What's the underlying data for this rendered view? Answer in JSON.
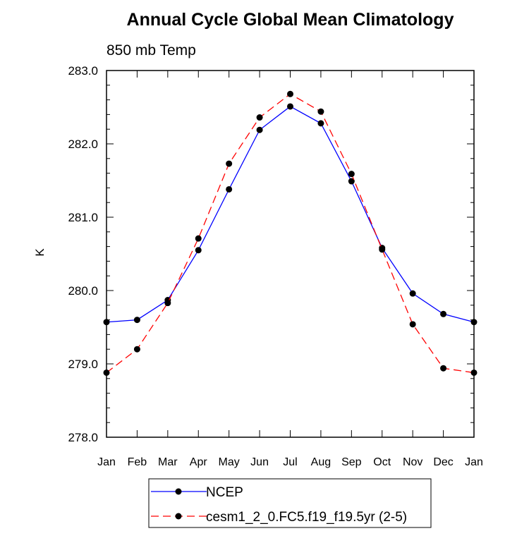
{
  "chart_data": {
    "type": "line",
    "title": "Annual Cycle Global Mean Climatology",
    "subtitle": "850 mb Temp",
    "xlabel": "",
    "ylabel": "K",
    "categories": [
      "Jan",
      "Feb",
      "Mar",
      "Apr",
      "May",
      "Jun",
      "Jul",
      "Aug",
      "Sep",
      "Oct",
      "Nov",
      "Dec",
      "Jan"
    ],
    "ylim": [
      278.0,
      283.0
    ],
    "yticks": [
      "278.0",
      "279.0",
      "280.0",
      "281.0",
      "282.0",
      "283.0"
    ],
    "grid": false,
    "legend_position": "bottom-center",
    "series": [
      {
        "name": "NCEP",
        "color": "#0000ff",
        "dash": "solid",
        "values": [
          279.57,
          279.6,
          279.87,
          280.55,
          281.38,
          282.19,
          282.51,
          282.28,
          281.49,
          280.58,
          279.96,
          279.68,
          279.57
        ]
      },
      {
        "name": "cesm1_2_0.FC5.f19_f19.5yr (2-5)",
        "color": "#ff0000",
        "dash": "dashed",
        "values": [
          278.88,
          279.2,
          279.83,
          280.71,
          281.73,
          282.36,
          282.68,
          282.44,
          281.59,
          280.56,
          279.54,
          278.94,
          278.88
        ]
      }
    ]
  }
}
